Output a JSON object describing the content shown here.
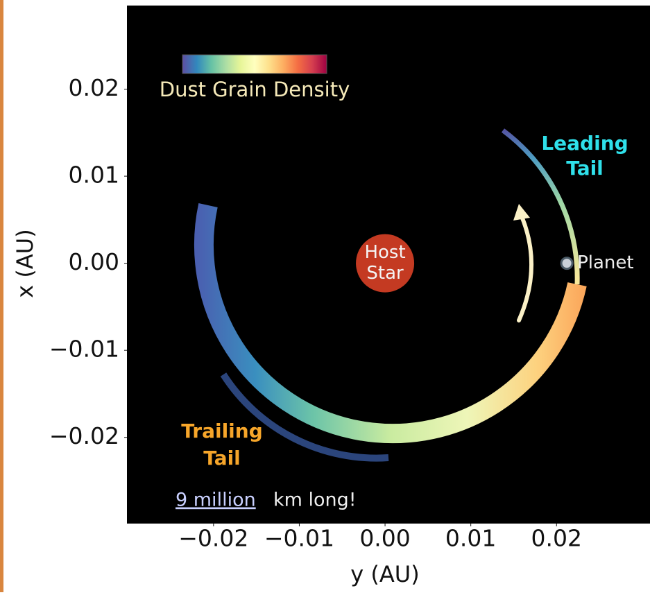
{
  "chart_data": {
    "type": "density",
    "colorbar_label": "Dust Grain Density",
    "x_label": "y (AU)",
    "y_label": "x (AU)",
    "xlim": [
      -0.0301,
      0.0309
    ],
    "ylim": [
      -0.0299,
      0.0296
    ],
    "xticks": [
      {
        "value": -0.02,
        "label": "−0.02"
      },
      {
        "value": -0.01,
        "label": "−0.01"
      },
      {
        "value": 0,
        "label": "0.00"
      },
      0.01,
      0.02
    ],
    "yticks": [
      {
        "value": -0.02,
        "label": "−0.02"
      },
      {
        "value": -0.01,
        "label": "−0.01"
      },
      {
        "value": 0,
        "label": "0.00"
      },
      0.01,
      0.02
    ],
    "points": [
      {
        "label_lines": [
          "Host",
          "Star"
        ],
        "x": 0,
        "y": 0,
        "color": "#c43a22"
      },
      {
        "label_lines": [
          "Planet"
        ],
        "x": 0.0212,
        "y": 0,
        "color": "#c9d0d8"
      }
    ],
    "leading_tail": [
      "Leading",
      "Tail"
    ],
    "trailing_tail": [
      "Trailing",
      "Tail"
    ],
    "note": [
      "9 million",
      "km long!"
    ]
  }
}
